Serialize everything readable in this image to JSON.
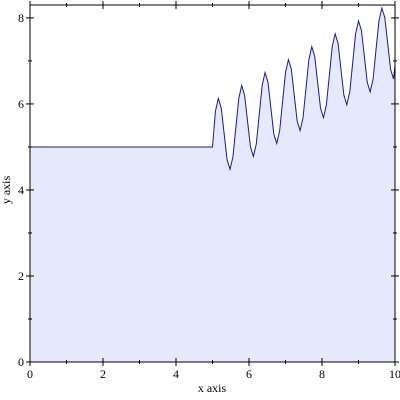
{
  "chart_data": {
    "type": "area",
    "x_label": "x axis",
    "y_label": "y axis",
    "xlim": [
      0,
      10
    ],
    "ylim": [
      0,
      8.3
    ],
    "xticks": [
      0,
      2,
      4,
      6,
      8,
      10
    ],
    "yticks": [
      0,
      2,
      4,
      6,
      8
    ],
    "xminorticks": [
      1,
      3,
      5,
      7,
      9
    ],
    "yminorticks": [
      1,
      3,
      5,
      7
    ],
    "line_color": "#1a1a8c",
    "fill_color": "#e6e9fb",
    "x": [
      0,
      5,
      5.08,
      5.16,
      5.24,
      5.32,
      5.4,
      5.48,
      5.56,
      5.64,
      5.72,
      5.8,
      5.88,
      5.96,
      6.04,
      6.12,
      6.2,
      6.28,
      6.36,
      6.44,
      6.52,
      6.6,
      6.68,
      6.76,
      6.84,
      6.92,
      7,
      7.08,
      7.16,
      7.24,
      7.32,
      7.4,
      7.48,
      7.56,
      7.64,
      7.72,
      7.8,
      7.88,
      7.96,
      8.04,
      8.12,
      8.2,
      8.28,
      8.36,
      8.44,
      8.52,
      8.6,
      8.68,
      8.76,
      8.84,
      8.92,
      9,
      9.08,
      9.16,
      9.24,
      9.32,
      9.4,
      9.48,
      9.56,
      9.64,
      9.72,
      9.8,
      9.88,
      9.96,
      10
    ],
    "values": [
      5,
      5,
      5.83,
      6.13,
      5.9,
      5.3,
      4.7,
      4.48,
      4.77,
      5.45,
      6.13,
      6.43,
      6.2,
      5.6,
      5.0,
      4.78,
      5.07,
      5.75,
      6.43,
      6.73,
      6.5,
      5.9,
      5.3,
      5.08,
      5.38,
      6.05,
      6.73,
      7.03,
      6.81,
      6.2,
      5.6,
      5.38,
      5.68,
      6.35,
      7.03,
      7.33,
      7.11,
      6.5,
      5.9,
      5.68,
      5.98,
      6.65,
      7.33,
      7.63,
      7.41,
      6.8,
      6.2,
      5.98,
      6.28,
      6.95,
      7.63,
      7.93,
      7.71,
      7.11,
      6.5,
      6.28,
      6.58,
      7.26,
      7.93,
      8.23,
      8.01,
      7.41,
      6.8,
      6.58,
      6.9
    ]
  }
}
